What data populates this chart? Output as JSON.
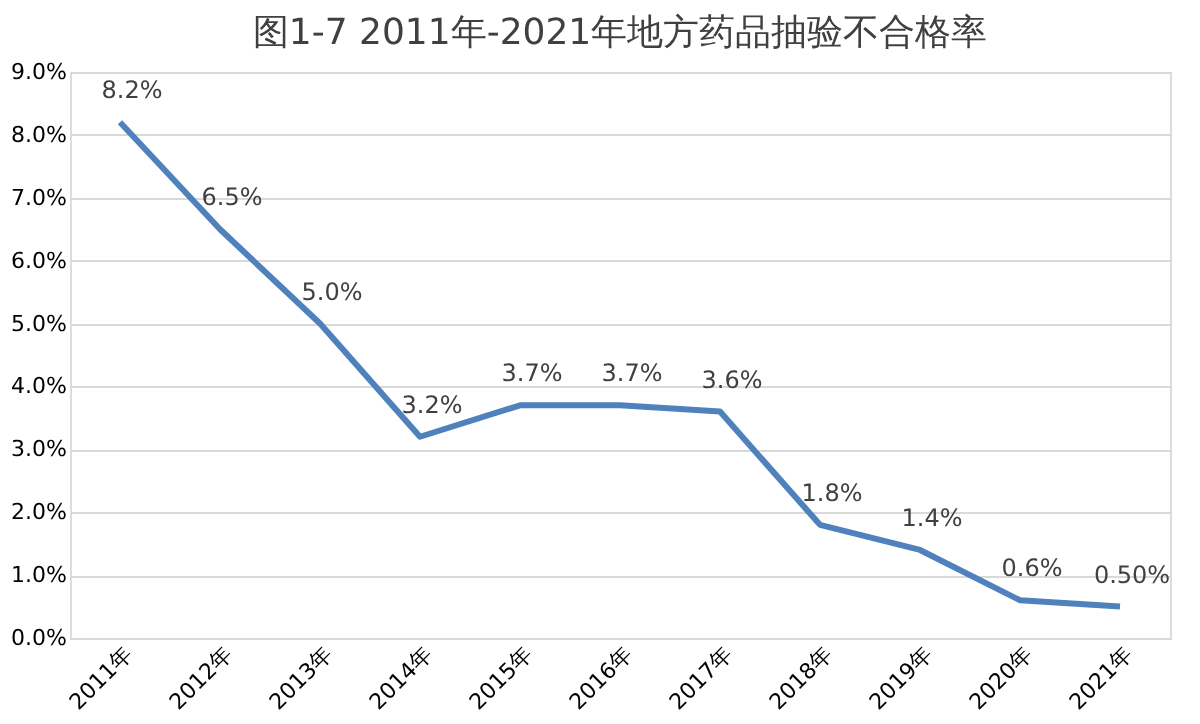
{
  "chart_data": {
    "type": "line",
    "title": "图1-7  2011年-2021年地方药品抽验不合格率",
    "categories": [
      "2011年",
      "2012年",
      "2013年",
      "2014年",
      "2015年",
      "2016年",
      "2017年",
      "2018年",
      "2019年",
      "2020年",
      "2021年"
    ],
    "series": [
      {
        "color": "#4f81bd",
        "values": [
          8.2,
          6.5,
          5.0,
          3.2,
          3.7,
          3.7,
          3.6,
          1.8,
          1.4,
          0.6,
          0.5
        ],
        "value_labels": [
          "8.2%",
          "6.5%",
          "5.0%",
          "3.2%",
          "3.7%",
          "3.7%",
          "3.6%",
          "1.8%",
          "1.4%",
          "0.6%",
          "0.50%"
        ]
      }
    ],
    "ylim": [
      0,
      9
    ],
    "yticks": [
      {
        "value": 0,
        "label": "0.0%"
      },
      {
        "value": 1,
        "label": "1.0%"
      },
      {
        "value": 2,
        "label": "2.0%"
      },
      {
        "value": 3,
        "label": "3.0%"
      },
      {
        "value": 4,
        "label": "4.0%"
      },
      {
        "value": 5,
        "label": "5.0%"
      },
      {
        "value": 6,
        "label": "6.0%"
      },
      {
        "value": 7,
        "label": "7.0%"
      },
      {
        "value": 8,
        "label": "8.0%"
      },
      {
        "value": 9,
        "label": "9.0%"
      }
    ],
    "grid": "y",
    "marker": "none",
    "line_style": "solid"
  }
}
